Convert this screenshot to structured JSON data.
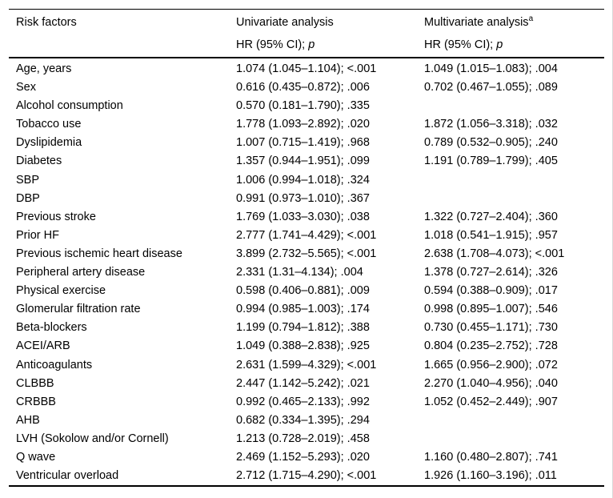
{
  "table": {
    "columns": [
      {
        "label": "Risk factors"
      },
      {
        "label": "Univariate analysis",
        "sub_prefix": "HR (95% CI); ",
        "sub_italic": "p"
      },
      {
        "label": "Multivariate analysis",
        "superscript": "a",
        "sub_prefix": "HR (95% CI); ",
        "sub_italic": "p"
      }
    ],
    "rows": [
      {
        "factor": "Age, years",
        "univariate": "1.074 (1.045–1.104); <.001",
        "multivariate": "1.049 (1.015–1.083); .004"
      },
      {
        "factor": "Sex",
        "univariate": "0.616 (0.435–0.872); .006",
        "multivariate": "0.702 (0.467–1.055); .089"
      },
      {
        "factor": "Alcohol consumption",
        "univariate": "0.570 (0.181–1.790); .335",
        "multivariate": ""
      },
      {
        "factor": "Tobacco use",
        "univariate": "1.778 (1.093–2.892); .020",
        "multivariate": "1.872 (1.056–3.318); .032"
      },
      {
        "factor": "Dyslipidemia",
        "univariate": "1.007 (0.715–1.419); .968",
        "multivariate": "0.789 (0.532–0.905); .240"
      },
      {
        "factor": "Diabetes",
        "univariate": "1.357 (0.944–1.951); .099",
        "multivariate": "1.191 (0.789–1.799); .405"
      },
      {
        "factor": "SBP",
        "univariate": "1.006 (0.994–1.018); .324",
        "multivariate": ""
      },
      {
        "factor": "DBP",
        "univariate": "0.991 (0.973–1.010); .367",
        "multivariate": ""
      },
      {
        "factor": "Previous stroke",
        "univariate": "1.769 (1.033–3.030); .038",
        "multivariate": "1.322 (0.727–2.404); .360"
      },
      {
        "factor": "Prior HF",
        "univariate": "2.777 (1.741–4.429); <.001",
        "multivariate": "1.018 (0.541–1.915); .957"
      },
      {
        "factor": "Previous ischemic heart disease",
        "univariate": "3.899 (2.732–5.565); <.001",
        "multivariate": "2.638 (1.708–4.073); <.001"
      },
      {
        "factor": "Peripheral artery disease",
        "univariate": "2.331 (1.31–4.134); .004",
        "multivariate": "1.378 (0.727–2.614); .326"
      },
      {
        "factor": "Physical exercise",
        "univariate": "0.598 (0.406–0.881); .009",
        "multivariate": "0.594 (0.388–0.909); .017"
      },
      {
        "factor": "Glomerular filtration rate",
        "univariate": "0.994 (0.985–1.003); .174",
        "multivariate": "0.998 (0.895–1.007); .546"
      },
      {
        "factor": "Beta-blockers",
        "univariate": "1.199 (0.794–1.812); .388",
        "multivariate": "0.730 (0.455–1.171); .730"
      },
      {
        "factor": "ACEI/ARB",
        "univariate": "1.049 (0.388–2.838); .925",
        "multivariate": "0.804 (0.235–2.752); .728"
      },
      {
        "factor": "Anticoagulants",
        "univariate": "2.631 (1.599–4.329); <.001",
        "multivariate": "1.665 (0.956–2.900); .072"
      },
      {
        "factor": "CLBBB",
        "univariate": "2.447 (1.142–5.242); .021",
        "multivariate": "2.270 (1.040–4.956); .040"
      },
      {
        "factor": "CRBBB",
        "univariate": "0.992 (0.465–2.133); .992",
        "multivariate": "1.052 (0.452–2.449); .907"
      },
      {
        "factor": "AHB",
        "univariate": "0.682 (0.334–1.395); .294",
        "multivariate": ""
      },
      {
        "factor": "LVH (Sokolow and/or Cornell)",
        "univariate": "1.213 (0.728–2.019); .458",
        "multivariate": ""
      },
      {
        "factor": "Q wave",
        "univariate": "2.469 (1.152–5.293); .020",
        "multivariate": "1.160 (0.480–2.807); .741"
      },
      {
        "factor": "Ventricular overload",
        "univariate": "2.712 (1.715–4.290); <.001",
        "multivariate": "1.926 (1.160–3.196); .011"
      }
    ]
  },
  "colors": {
    "text": "#000000",
    "rule": "#000000",
    "background": "#ffffff",
    "page_edge": "#d9d9d9"
  }
}
